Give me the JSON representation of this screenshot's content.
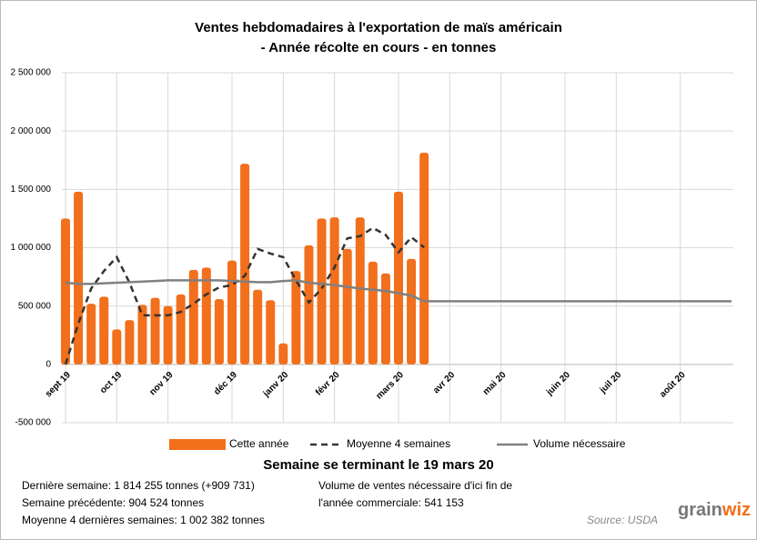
{
  "chart_data": {
    "type": "combo",
    "title": "Ventes hebdomadaires à l'exportation de maïs américain",
    "subtitle": "- Année récolte en cours - en tonnes",
    "categories": [
      "sept 19",
      null,
      null,
      null,
      "oct 19",
      null,
      null,
      null,
      "nov 19",
      null,
      null,
      null,
      null,
      "déc 19",
      null,
      null,
      null,
      "janv 20",
      null,
      null,
      null,
      "févr 20",
      null,
      null,
      null,
      null,
      "mars 20",
      null,
      null,
      null,
      "avr 20",
      null,
      null,
      null,
      "mai 20",
      null,
      null,
      null,
      null,
      "juin 20",
      null,
      null,
      null,
      "juil 20",
      null,
      null,
      null,
      null,
      "août 20",
      null,
      null,
      null,
      null
    ],
    "series": [
      {
        "name": "Cette année",
        "type": "bar",
        "color": "#f26f1c",
        "values": [
          1250000,
          1480000,
          520000,
          580000,
          300000,
          380000,
          510000,
          570000,
          500000,
          600000,
          810000,
          830000,
          560000,
          890000,
          1720000,
          640000,
          550000,
          180000,
          800000,
          1020000,
          1250000,
          1260000,
          990000,
          1260000,
          880000,
          780000,
          1480000,
          904524,
          1814255,
          null,
          null,
          null,
          null,
          null,
          null,
          null,
          null,
          null,
          null,
          null,
          null,
          null,
          null,
          null,
          null,
          null,
          null,
          null,
          null,
          null,
          null,
          null,
          null
        ]
      },
      {
        "name": "Moyenne 4 semaines",
        "type": "line",
        "dash": true,
        "color": "#333333",
        "values": [
          0,
          350000,
          650000,
          800000,
          920000,
          700000,
          420000,
          420000,
          420000,
          450000,
          520000,
          600000,
          660000,
          680000,
          760000,
          990000,
          950000,
          920000,
          720000,
          530000,
          650000,
          830000,
          1080000,
          1100000,
          1170000,
          1110000,
          960000,
          1090000,
          1002382,
          null,
          null,
          null,
          null,
          null,
          null,
          null,
          null,
          null,
          null,
          null,
          null,
          null,
          null,
          null,
          null,
          null,
          null,
          null,
          null,
          null,
          null,
          null,
          null
        ]
      },
      {
        "name": "Volume nécessaire",
        "type": "line",
        "dash": false,
        "color": "#808080",
        "values": [
          700000,
          690000,
          690000,
          695000,
          700000,
          705000,
          710000,
          715000,
          720000,
          720000,
          720000,
          720000,
          720000,
          715000,
          710000,
          705000,
          705000,
          715000,
          720000,
          700000,
          690000,
          680000,
          665000,
          650000,
          640000,
          630000,
          610000,
          590000,
          541153,
          541153,
          541153,
          541153,
          541153,
          541153,
          541153,
          541153,
          541153,
          541153,
          541153,
          541153,
          541153,
          541153,
          541153,
          541153,
          541153,
          541153,
          541153,
          541153,
          541153,
          541153,
          541153,
          541153,
          541153
        ]
      }
    ],
    "ylim": [
      -500000,
      2500000
    ],
    "yticks": [
      {
        "value": -500000,
        "label": "-500 000"
      },
      0,
      {
        "value": 500000,
        "label": "500 000"
      },
      {
        "value": 1000000,
        "label": "1 000 000"
      },
      {
        "value": 1500000,
        "label": "1 500 000"
      },
      {
        "value": 2000000,
        "label": "2 000 000"
      },
      {
        "value": 2500000,
        "label": "2 500 000"
      }
    ],
    "grid": true
  },
  "summary": {
    "heading": "Semaine se terminant le 19 mars 20",
    "left": [
      "Dernière semaine: 1 814 255 tonnes (+909 731)",
      "Semaine précédente: 904 524 tonnes",
      "Moyenne 4 dernières semaines: 1 002 382 tonnes"
    ],
    "right": [
      "Volume de ventes nécessaire d'ici fin de",
      "l'année commerciale: 541 153"
    ],
    "source": "Source: USDA",
    "logo": [
      "grain",
      "wiz"
    ]
  }
}
